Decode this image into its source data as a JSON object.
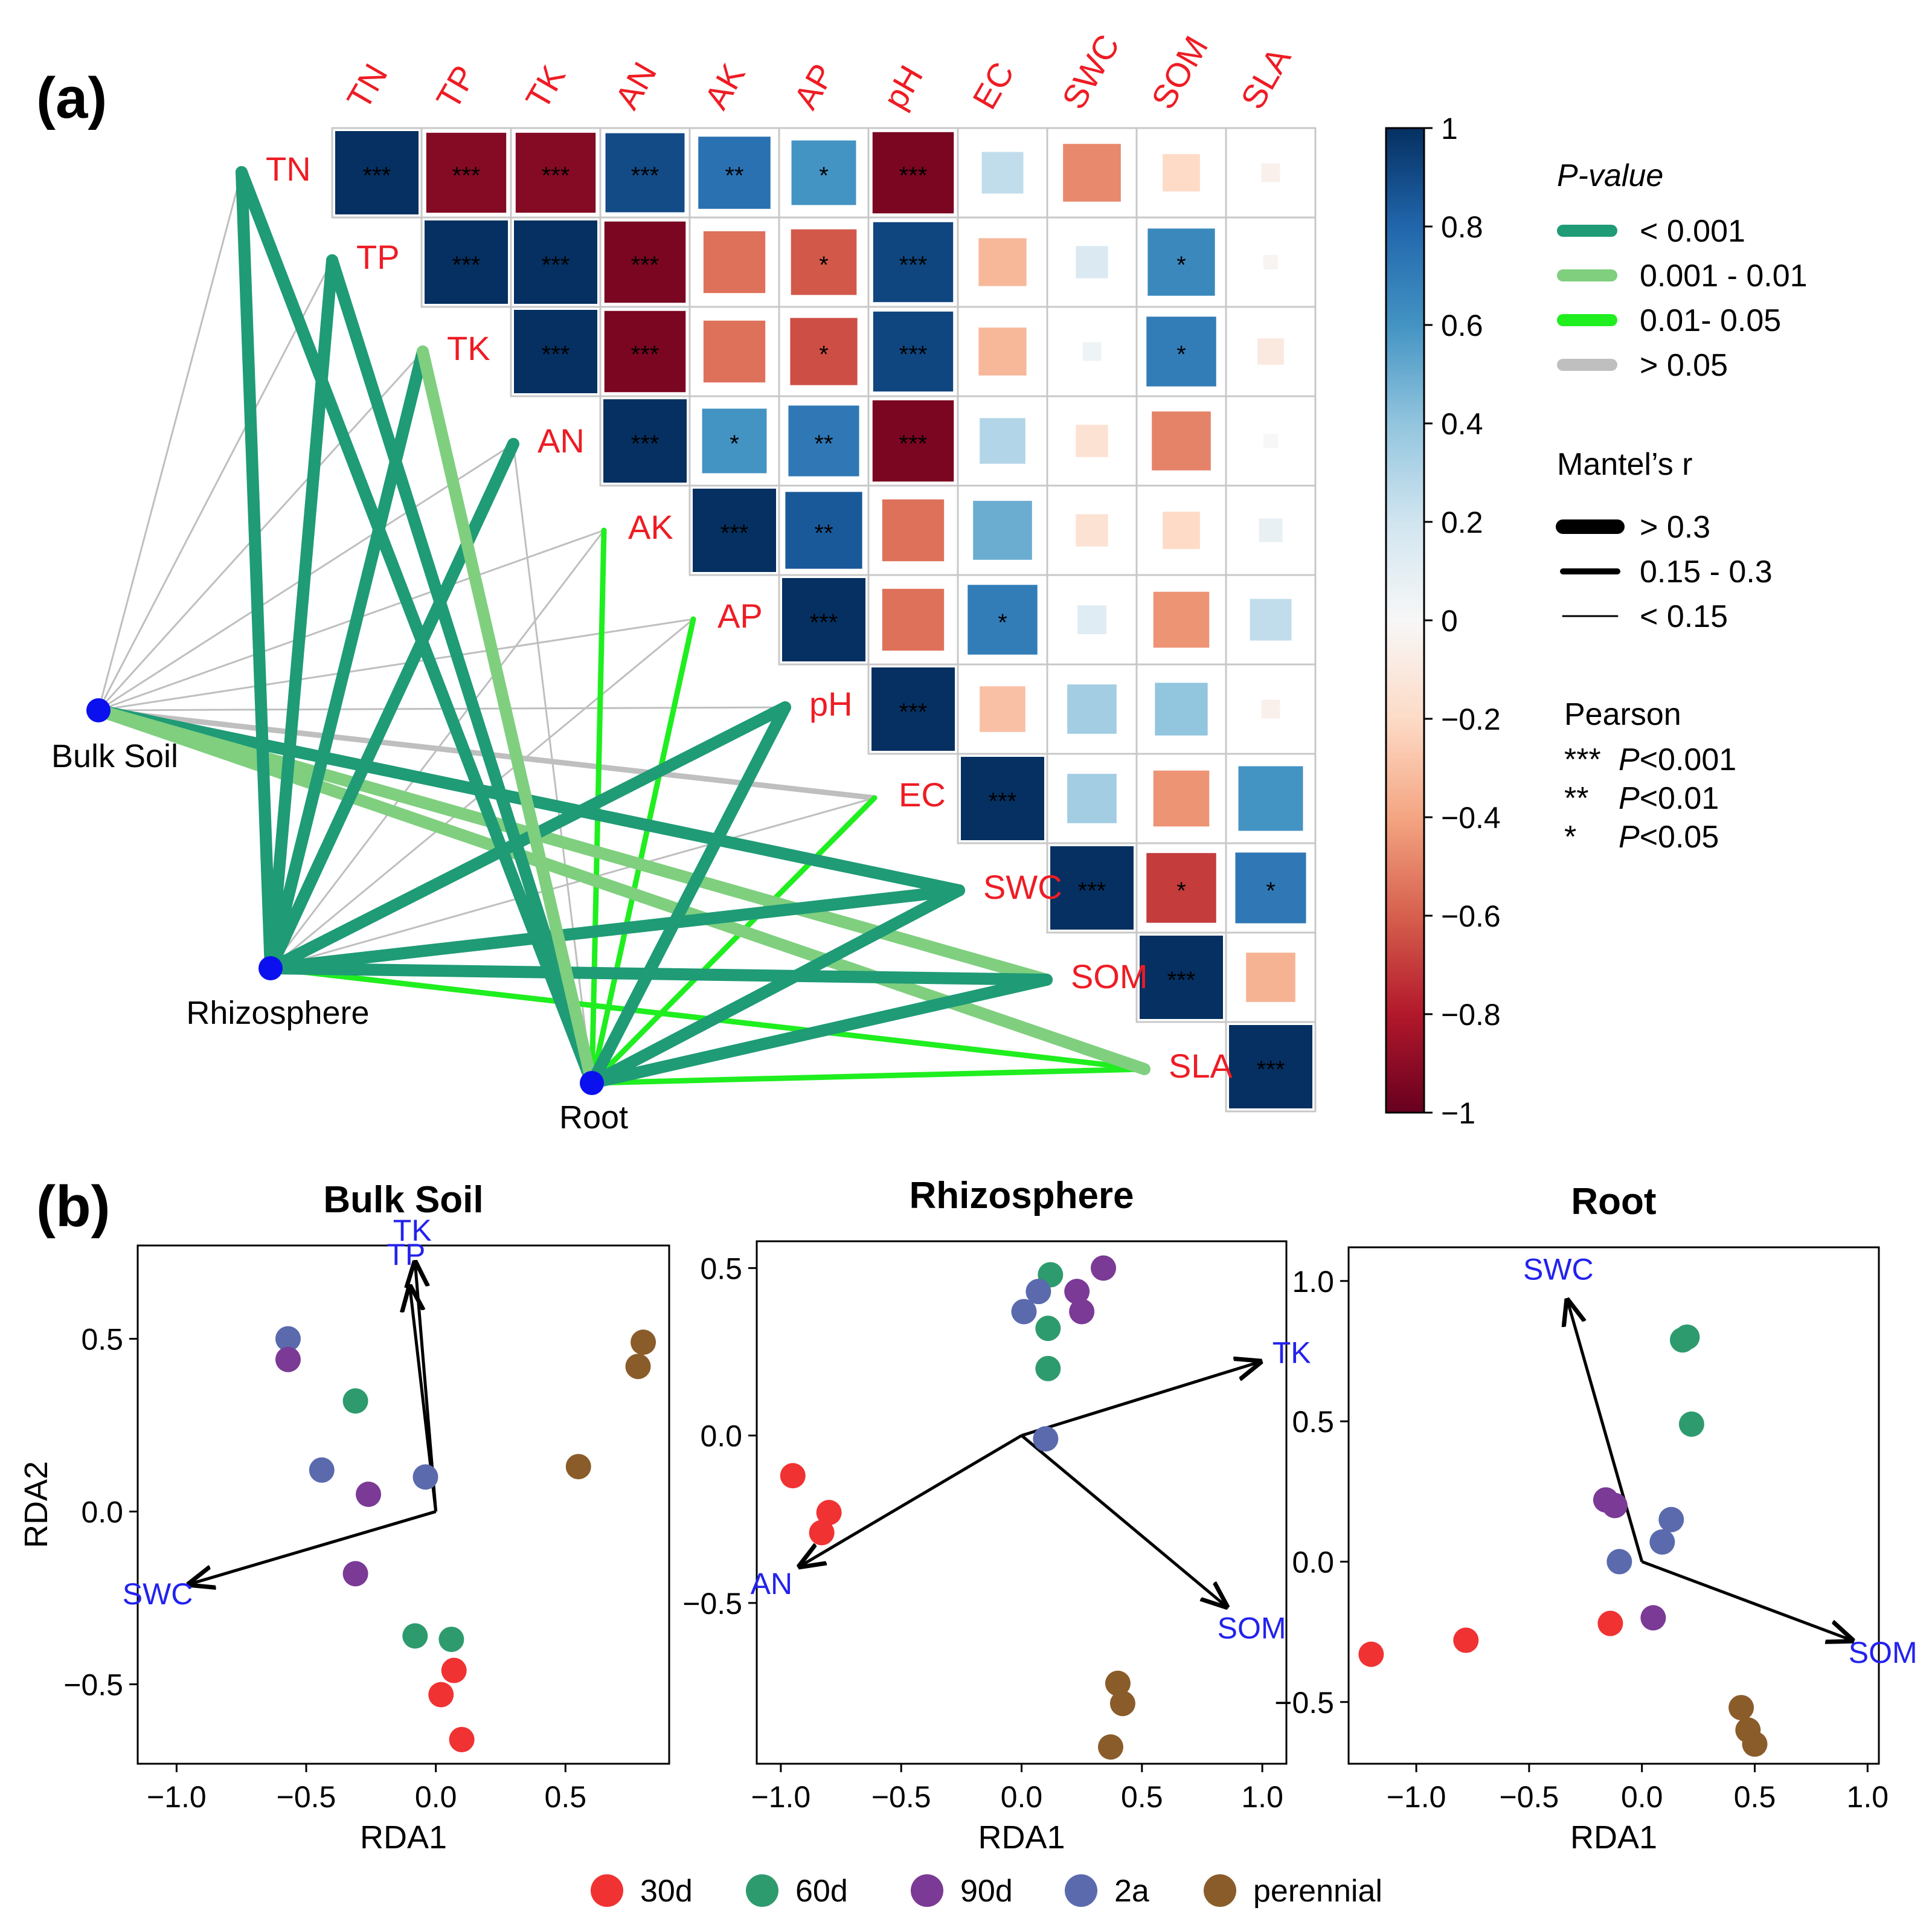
{
  "panel_labels": {
    "a": "(a)",
    "b": "(b)"
  },
  "chart_data": [
    {
      "type": "heatmap",
      "panel": "(a)",
      "variables": [
        "TN",
        "TP",
        "TK",
        "AN",
        "AK",
        "AP",
        "pH",
        "EC",
        "SWC",
        "SOM",
        "SLA"
      ],
      "correlation_upper_triangle": [
        [
          1.0,
          -0.92,
          -0.92,
          0.9,
          0.75,
          0.6,
          -0.95,
          0.25,
          -0.48,
          -0.2,
          -0.05
        ],
        [
          null,
          1.0,
          1.0,
          -0.95,
          -0.55,
          -0.62,
          0.92,
          -0.33,
          0.15,
          0.65,
          -0.02
        ],
        [
          null,
          null,
          1.0,
          -0.95,
          -0.55,
          -0.65,
          0.92,
          -0.33,
          0.05,
          0.7,
          -0.1
        ],
        [
          null,
          null,
          null,
          1.0,
          0.6,
          0.72,
          -0.95,
          0.3,
          -0.15,
          -0.5,
          0.0
        ],
        [
          null,
          null,
          null,
          null,
          1.0,
          0.85,
          -0.55,
          0.5,
          -0.15,
          -0.2,
          0.08
        ],
        [
          null,
          null,
          null,
          null,
          null,
          1.0,
          -0.55,
          0.7,
          0.12,
          -0.45,
          0.25
        ],
        [
          null,
          null,
          null,
          null,
          null,
          null,
          1.0,
          -0.3,
          0.35,
          0.4,
          -0.05
        ],
        [
          null,
          null,
          null,
          null,
          null,
          null,
          null,
          1.0,
          0.35,
          -0.45,
          0.6
        ],
        [
          null,
          null,
          null,
          null,
          null,
          null,
          null,
          null,
          1.0,
          -0.7,
          0.72
        ],
        [
          null,
          null,
          null,
          null,
          null,
          null,
          null,
          null,
          null,
          1.0,
          -0.35
        ],
        [
          null,
          null,
          null,
          null,
          null,
          null,
          null,
          null,
          null,
          null,
          1.0
        ]
      ],
      "significance_upper_triangle": [
        [
          "***",
          "***",
          "***",
          "***",
          "**",
          "*",
          "***",
          "",
          "",
          "",
          ""
        ],
        [
          null,
          "***",
          "***",
          "***",
          "",
          "*",
          "***",
          "",
          "",
          "*",
          ""
        ],
        [
          null,
          null,
          "***",
          "***",
          "",
          "*",
          "***",
          "",
          "",
          "*",
          ""
        ],
        [
          null,
          null,
          null,
          "***",
          "*",
          "**",
          "***",
          "",
          "",
          "",
          ""
        ],
        [
          null,
          null,
          null,
          null,
          "***",
          "**",
          "",
          "",
          "",
          "",
          ""
        ],
        [
          null,
          null,
          null,
          null,
          null,
          "***",
          "",
          "*",
          "",
          "",
          ""
        ],
        [
          null,
          null,
          null,
          null,
          null,
          null,
          "***",
          "",
          "",
          "",
          ""
        ],
        [
          null,
          null,
          null,
          null,
          null,
          null,
          null,
          "***",
          "",
          "",
          ""
        ],
        [
          null,
          null,
          null,
          null,
          null,
          null,
          null,
          null,
          "***",
          "*",
          "*"
        ],
        [
          null,
          null,
          null,
          null,
          null,
          null,
          null,
          null,
          null,
          "***",
          ""
        ],
        [
          null,
          null,
          null,
          null,
          null,
          null,
          null,
          null,
          null,
          null,
          "***"
        ]
      ],
      "colorbar": {
        "range": [
          -1,
          1
        ],
        "ticks": [
          1,
          0.8,
          0.6,
          0.4,
          0.2,
          0,
          -0.2,
          -0.4,
          -0.6,
          -0.8,
          -1
        ],
        "tick_labels": [
          "1",
          "0.8",
          "0.6",
          "0.4",
          "0.2",
          "0",
          "−0.2",
          "−0.4",
          "−0.6",
          "−0.8",
          "−1"
        ]
      },
      "mantel_sources": [
        "Bulk Soil",
        "Rhizosphere",
        "Root"
      ],
      "mantel_links": [
        {
          "from": "Bulk Soil",
          "to": "TN",
          "p": "gt0.05",
          "r": "lt0.15"
        },
        {
          "from": "Bulk Soil",
          "to": "TP",
          "p": "gt0.05",
          "r": "lt0.15"
        },
        {
          "from": "Bulk Soil",
          "to": "TK",
          "p": "gt0.05",
          "r": "lt0.15"
        },
        {
          "from": "Bulk Soil",
          "to": "AN",
          "p": "gt0.05",
          "r": "lt0.15"
        },
        {
          "from": "Bulk Soil",
          "to": "AK",
          "p": "gt0.05",
          "r": "lt0.15"
        },
        {
          "from": "Bulk Soil",
          "to": "AP",
          "p": "gt0.05",
          "r": "lt0.15"
        },
        {
          "from": "Bulk Soil",
          "to": "pH",
          "p": "gt0.05",
          "r": "lt0.15"
        },
        {
          "from": "Bulk Soil",
          "to": "EC",
          "p": "gt0.05",
          "r": "0.15-0.3"
        },
        {
          "from": "Bulk Soil",
          "to": "SWC",
          "p": "lt0.001",
          "r": "gt0.3"
        },
        {
          "from": "Bulk Soil",
          "to": "SOM",
          "p": "0.001-0.01",
          "r": "gt0.3"
        },
        {
          "from": "Bulk Soil",
          "to": "SLA",
          "p": "0.001-0.01",
          "r": "gt0.3"
        },
        {
          "from": "Rhizosphere",
          "to": "TN",
          "p": "lt0.001",
          "r": "gt0.3"
        },
        {
          "from": "Rhizosphere",
          "to": "TP",
          "p": "lt0.001",
          "r": "gt0.3"
        },
        {
          "from": "Rhizosphere",
          "to": "TK",
          "p": "lt0.001",
          "r": "gt0.3"
        },
        {
          "from": "Rhizosphere",
          "to": "AN",
          "p": "lt0.001",
          "r": "gt0.3"
        },
        {
          "from": "Rhizosphere",
          "to": "AK",
          "p": "gt0.05",
          "r": "lt0.15"
        },
        {
          "from": "Rhizosphere",
          "to": "AP",
          "p": "gt0.05",
          "r": "lt0.15"
        },
        {
          "from": "Rhizosphere",
          "to": "pH",
          "p": "lt0.001",
          "r": "gt0.3"
        },
        {
          "from": "Rhizosphere",
          "to": "EC",
          "p": "gt0.05",
          "r": "lt0.15"
        },
        {
          "from": "Rhizosphere",
          "to": "SWC",
          "p": "lt0.001",
          "r": "gt0.3"
        },
        {
          "from": "Rhizosphere",
          "to": "SOM",
          "p": "lt0.001",
          "r": "gt0.3"
        },
        {
          "from": "Rhizosphere",
          "to": "SLA",
          "p": "0.01-0.05",
          "r": "0.15-0.3"
        },
        {
          "from": "Root",
          "to": "TN",
          "p": "lt0.001",
          "r": "gt0.3"
        },
        {
          "from": "Root",
          "to": "TP",
          "p": "lt0.001",
          "r": "gt0.3"
        },
        {
          "from": "Root",
          "to": "TK",
          "p": "0.001-0.01",
          "r": "gt0.3"
        },
        {
          "from": "Root",
          "to": "AN",
          "p": "gt0.05",
          "r": "lt0.15"
        },
        {
          "from": "Root",
          "to": "AK",
          "p": "0.01-0.05",
          "r": "0.15-0.3"
        },
        {
          "from": "Root",
          "to": "AP",
          "p": "0.01-0.05",
          "r": "0.15-0.3"
        },
        {
          "from": "Root",
          "to": "pH",
          "p": "lt0.001",
          "r": "gt0.3"
        },
        {
          "from": "Root",
          "to": "EC",
          "p": "0.01-0.05",
          "r": "0.15-0.3"
        },
        {
          "from": "Root",
          "to": "SWC",
          "p": "lt0.001",
          "r": "gt0.3"
        },
        {
          "from": "Root",
          "to": "SOM",
          "p": "lt0.001",
          "r": "gt0.3"
        },
        {
          "from": "Root",
          "to": "SLA",
          "p": "0.01-0.05",
          "r": "0.15-0.3"
        }
      ],
      "legend": {
        "pvalue_title": "P-value",
        "pvalue_items": [
          {
            "key": "lt0.001",
            "label": "<  0.001",
            "color": "#1f9b76"
          },
          {
            "key": "0.001-0.01",
            "label": "0.001 - 0.01",
            "color": "#7fcf7f"
          },
          {
            "key": "0.01-0.05",
            "label": "0.01- 0.05",
            "color": "#1fee1f"
          },
          {
            "key": "gt0.05",
            "label": "> 0.05",
            "color": "#bfbfbf"
          }
        ],
        "mantel_title": "Mantel’s r",
        "mantel_items": [
          {
            "key": "gt0.3",
            "label": "> 0.3"
          },
          {
            "key": "0.15-0.3",
            "label": "0.15 - 0.3"
          },
          {
            "key": "lt0.15",
            "label": "< 0.15"
          }
        ],
        "pearson_title": "Pearson",
        "pearson_items": [
          {
            "stars": "***",
            "text": "P<0.001"
          },
          {
            "stars": "**",
            "text": "P<0.01"
          },
          {
            "stars": "*",
            "text": "P<0.05"
          }
        ]
      }
    },
    {
      "type": "scatter",
      "panel": "(b)",
      "title": "Bulk Soil",
      "xlabel": "RDA1",
      "ylabel": "RDA2",
      "xlim": [
        -1.15,
        0.9
      ],
      "ylim": [
        -0.73,
        0.77
      ],
      "xticks": [
        -1.0,
        -0.5,
        0.0,
        0.5
      ],
      "xtick_labels": [
        "−1.0",
        "−0.5",
        "0.0",
        "0.5"
      ],
      "yticks": [
        -0.5,
        0.0,
        0.5
      ],
      "ytick_labels": [
        "−0.5",
        "0.0",
        "0.5"
      ],
      "arrows": [
        {
          "label": "TK",
          "x": -0.08,
          "y": 0.72
        },
        {
          "label": "TP",
          "x": -0.1,
          "y": 0.65
        },
        {
          "label": "SWC",
          "x": -0.95,
          "y": -0.21
        }
      ],
      "points": [
        {
          "group": "2a",
          "x": -0.57,
          "y": 0.5
        },
        {
          "group": "90d",
          "x": -0.57,
          "y": 0.44
        },
        {
          "group": "60d",
          "x": -0.31,
          "y": 0.32
        },
        {
          "group": "2a",
          "x": -0.44,
          "y": 0.12
        },
        {
          "group": "2a",
          "x": -0.04,
          "y": 0.1
        },
        {
          "group": "90d",
          "x": -0.26,
          "y": 0.05
        },
        {
          "group": "90d",
          "x": -0.31,
          "y": -0.18
        },
        {
          "group": "60d",
          "x": -0.08,
          "y": -0.36
        },
        {
          "group": "60d",
          "x": 0.06,
          "y": -0.37
        },
        {
          "group": "30d",
          "x": 0.07,
          "y": -0.46
        },
        {
          "group": "30d",
          "x": 0.02,
          "y": -0.53
        },
        {
          "group": "30d",
          "x": 0.1,
          "y": -0.66
        },
        {
          "group": "perennial",
          "x": 0.8,
          "y": 0.49
        },
        {
          "group": "perennial",
          "x": 0.78,
          "y": 0.42
        },
        {
          "group": "perennial",
          "x": 0.55,
          "y": 0.13
        }
      ]
    },
    {
      "type": "scatter",
      "panel": "(b)",
      "title": "Rhizosphere",
      "xlabel": "RDA1",
      "ylabel": "",
      "xlim": [
        -1.1,
        1.1
      ],
      "ylim": [
        -0.98,
        0.58
      ],
      "xticks": [
        -1.0,
        -0.5,
        0.0,
        0.5,
        1.0
      ],
      "xtick_labels": [
        "−1.0",
        "−0.5",
        "0.0",
        "0.5",
        "1.0"
      ],
      "yticks": [
        -0.5,
        0.0,
        0.5
      ],
      "ytick_labels": [
        "−0.5",
        "0.0",
        "0.5"
      ],
      "arrows": [
        {
          "label": "TK",
          "x": 0.99,
          "y": 0.22
        },
        {
          "label": "AN",
          "x": -0.92,
          "y": -0.39
        },
        {
          "label": "SOM",
          "x": 0.85,
          "y": -0.51
        }
      ],
      "points": [
        {
          "group": "90d",
          "x": 0.34,
          "y": 0.5
        },
        {
          "group": "60d",
          "x": 0.12,
          "y": 0.48
        },
        {
          "group": "2a",
          "x": 0.07,
          "y": 0.43
        },
        {
          "group": "90d",
          "x": 0.23,
          "y": 0.43
        },
        {
          "group": "2a",
          "x": 0.01,
          "y": 0.37
        },
        {
          "group": "90d",
          "x": 0.25,
          "y": 0.37
        },
        {
          "group": "60d",
          "x": 0.11,
          "y": 0.32
        },
        {
          "group": "60d",
          "x": 0.11,
          "y": 0.2
        },
        {
          "group": "2a",
          "x": 0.1,
          "y": -0.01
        },
        {
          "group": "30d",
          "x": -0.95,
          "y": -0.12
        },
        {
          "group": "30d",
          "x": -0.8,
          "y": -0.23
        },
        {
          "group": "30d",
          "x": -0.83,
          "y": -0.29
        },
        {
          "group": "perennial",
          "x": 0.4,
          "y": -0.74
        },
        {
          "group": "perennial",
          "x": 0.42,
          "y": -0.8
        },
        {
          "group": "perennial",
          "x": 0.37,
          "y": -0.93
        }
      ]
    },
    {
      "type": "scatter",
      "panel": "(b)",
      "title": "Root",
      "xlabel": "RDA1",
      "ylabel": "",
      "xlim": [
        -1.3,
        1.05
      ],
      "ylim": [
        -0.72,
        1.12
      ],
      "xticks": [
        -1.0,
        -0.5,
        0.0,
        0.5,
        1.0
      ],
      "xtick_labels": [
        "−1.0",
        "−0.5",
        "0.0",
        "0.5",
        "1.0"
      ],
      "yticks": [
        -0.5,
        0.0,
        0.5,
        1.0
      ],
      "ytick_labels": [
        "−0.5",
        "0.0",
        "0.5",
        "1.0"
      ],
      "arrows": [
        {
          "label": "SWC",
          "x": -0.33,
          "y": 0.93
        },
        {
          "label": "SOM",
          "x": 0.93,
          "y": -0.28
        }
      ],
      "points": [
        {
          "group": "60d",
          "x": 0.18,
          "y": 0.79
        },
        {
          "group": "60d",
          "x": 0.2,
          "y": 0.8
        },
        {
          "group": "60d",
          "x": 0.22,
          "y": 0.49
        },
        {
          "group": "90d",
          "x": -0.16,
          "y": 0.22
        },
        {
          "group": "90d",
          "x": -0.12,
          "y": 0.2
        },
        {
          "group": "2a",
          "x": 0.13,
          "y": 0.15
        },
        {
          "group": "2a",
          "x": 0.09,
          "y": 0.07
        },
        {
          "group": "2a",
          "x": -0.1,
          "y": 0.0
        },
        {
          "group": "30d",
          "x": -0.14,
          "y": -0.22
        },
        {
          "group": "90d",
          "x": 0.05,
          "y": -0.2
        },
        {
          "group": "30d",
          "x": -0.78,
          "y": -0.28
        },
        {
          "group": "30d",
          "x": -1.2,
          "y": -0.33
        },
        {
          "group": "perennial",
          "x": 0.44,
          "y": -0.52
        },
        {
          "group": "perennial",
          "x": 0.47,
          "y": -0.6
        },
        {
          "group": "perennial",
          "x": 0.5,
          "y": -0.65
        }
      ]
    }
  ],
  "group_legend": [
    {
      "key": "30d",
      "label": "30d",
      "color": "#f03232"
    },
    {
      "key": "60d",
      "label": "60d",
      "color": "#2e9b6e"
    },
    {
      "key": "90d",
      "label": "90d",
      "color": "#7a3a95"
    },
    {
      "key": "2a",
      "label": "2a",
      "color": "#5a6aad"
    },
    {
      "key": "perennial",
      "label": "perennial",
      "color": "#8a5c2a"
    }
  ],
  "colors": {
    "label_red": "#ee1c24",
    "arrow_label_blue": "#2222ee",
    "node_blue": "#0a10ee"
  }
}
